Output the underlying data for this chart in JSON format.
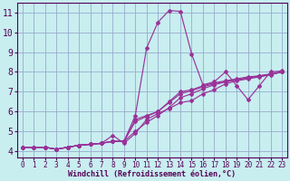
{
  "xlabel": "Windchill (Refroidissement éolien,°C)",
  "bg_color": "#c8eef0",
  "line_color": "#993399",
  "grid_color": "#99aacc",
  "label_color": "#550055",
  "xlim": [
    -0.5,
    23.5
  ],
  "ylim": [
    3.7,
    11.5
  ],
  "xticks": [
    0,
    1,
    2,
    3,
    4,
    5,
    6,
    7,
    8,
    9,
    10,
    11,
    12,
    13,
    14,
    15,
    16,
    17,
    18,
    19,
    20,
    21,
    22,
    23
  ],
  "yticks": [
    4,
    5,
    6,
    7,
    8,
    9,
    10,
    11
  ],
  "x_vals": [
    0,
    1,
    2,
    3,
    4,
    5,
    6,
    7,
    8,
    9,
    10,
    11,
    12,
    13,
    14,
    15,
    16,
    17,
    18,
    19,
    20,
    21,
    22,
    23
  ],
  "series": [
    [
      4.2,
      4.2,
      4.2,
      4.1,
      4.2,
      4.3,
      4.35,
      4.4,
      4.5,
      4.5,
      5.8,
      9.2,
      10.5,
      11.1,
      11.05,
      8.9,
      7.35,
      7.5,
      8.0,
      7.3,
      6.6,
      7.3,
      8.0,
      8.05
    ],
    [
      4.2,
      4.2,
      4.2,
      4.1,
      4.2,
      4.3,
      4.35,
      4.4,
      4.5,
      4.5,
      5.6,
      5.8,
      6.0,
      6.5,
      7.0,
      7.1,
      7.3,
      7.45,
      7.55,
      7.65,
      7.75,
      7.8,
      7.9,
      8.0
    ],
    [
      4.2,
      4.2,
      4.2,
      4.1,
      4.2,
      4.3,
      4.35,
      4.4,
      4.8,
      4.4,
      4.9,
      5.6,
      5.9,
      6.15,
      6.45,
      6.55,
      6.9,
      7.1,
      7.4,
      7.55,
      7.65,
      7.75,
      7.85,
      8.0
    ],
    [
      4.2,
      4.2,
      4.2,
      4.1,
      4.2,
      4.3,
      4.35,
      4.4,
      4.5,
      4.5,
      5.5,
      5.75,
      6.0,
      6.45,
      6.9,
      7.05,
      7.25,
      7.4,
      7.5,
      7.6,
      7.7,
      7.8,
      7.88,
      8.0
    ],
    [
      4.2,
      4.2,
      4.2,
      4.1,
      4.2,
      4.3,
      4.35,
      4.4,
      4.5,
      4.5,
      5.0,
      5.45,
      5.8,
      6.2,
      6.7,
      6.9,
      7.15,
      7.35,
      7.5,
      7.6,
      7.7,
      7.78,
      7.88,
      8.0
    ]
  ]
}
